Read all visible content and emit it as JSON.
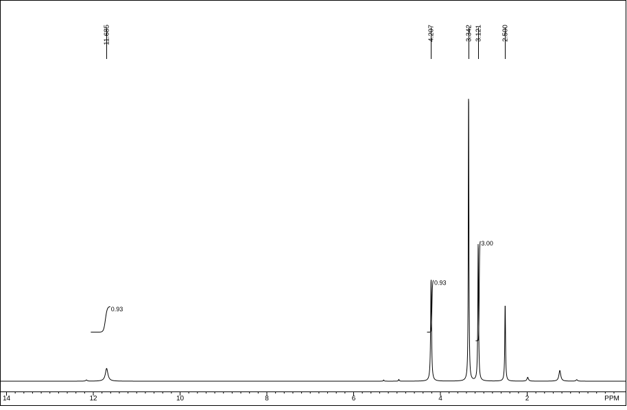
{
  "chart_data": {
    "type": "line",
    "xlabel": "PPM",
    "x_axis_reversed": true,
    "xlim": [
      14.15,
      -0.15
    ],
    "ylim": [
      0,
      100
    ],
    "x_tick_labels": [
      "14",
      "12",
      "10",
      "8",
      "6",
      "4",
      "2"
    ],
    "x_ticks": [
      14,
      12,
      10,
      8,
      6,
      4,
      2
    ],
    "minor_tick_step": 0.2,
    "grid": false,
    "legend": "none",
    "peak_labels": [
      "11.685",
      "4.207",
      "3.342",
      "3.121",
      "2.500"
    ],
    "peak_positions": [
      11.685,
      4.207,
      3.342,
      3.121,
      2.5
    ],
    "series": [
      {
        "peaks": [
          {
            "ppm": 11.685,
            "height": 4.3,
            "width": 0.035
          },
          {
            "ppm": 4.207,
            "height": 34.6,
            "width": 0.012
          },
          {
            "ppm": 3.342,
            "height": 100,
            "width": 0.008
          },
          {
            "ppm": 3.121,
            "height": 47.0,
            "width": 0.01
          },
          {
            "ppm": 2.5,
            "height": 26.2,
            "width": 0.01
          },
          {
            "ppm": 1.24,
            "height": 3.6,
            "width": 0.025
          },
          {
            "ppm": 1.98,
            "height": 1.3,
            "width": 0.02
          },
          {
            "ppm": 12.15,
            "height": 0.4,
            "width": 0.02
          },
          {
            "ppm": 4.95,
            "height": 0.6,
            "width": 0.01
          },
          {
            "ppm": 5.3,
            "height": 0.4,
            "width": 0.01
          },
          {
            "ppm": 0.85,
            "height": 0.5,
            "width": 0.02
          }
        ]
      }
    ],
    "integrals": [
      {
        "label": "0.93",
        "from": 12.05,
        "to": 11.6,
        "y_start": 16.5,
        "y_end": 25.1
      },
      {
        "label": "0.93",
        "from": 4.3,
        "to": 4.15,
        "y_start": 16.5,
        "y_end": 34.0
      },
      {
        "label": "3.00",
        "from": 3.18,
        "to": 3.07,
        "y_start": 13.6,
        "y_end": 47.2
      }
    ],
    "line_color": "#000000",
    "background": "#ffffff"
  }
}
